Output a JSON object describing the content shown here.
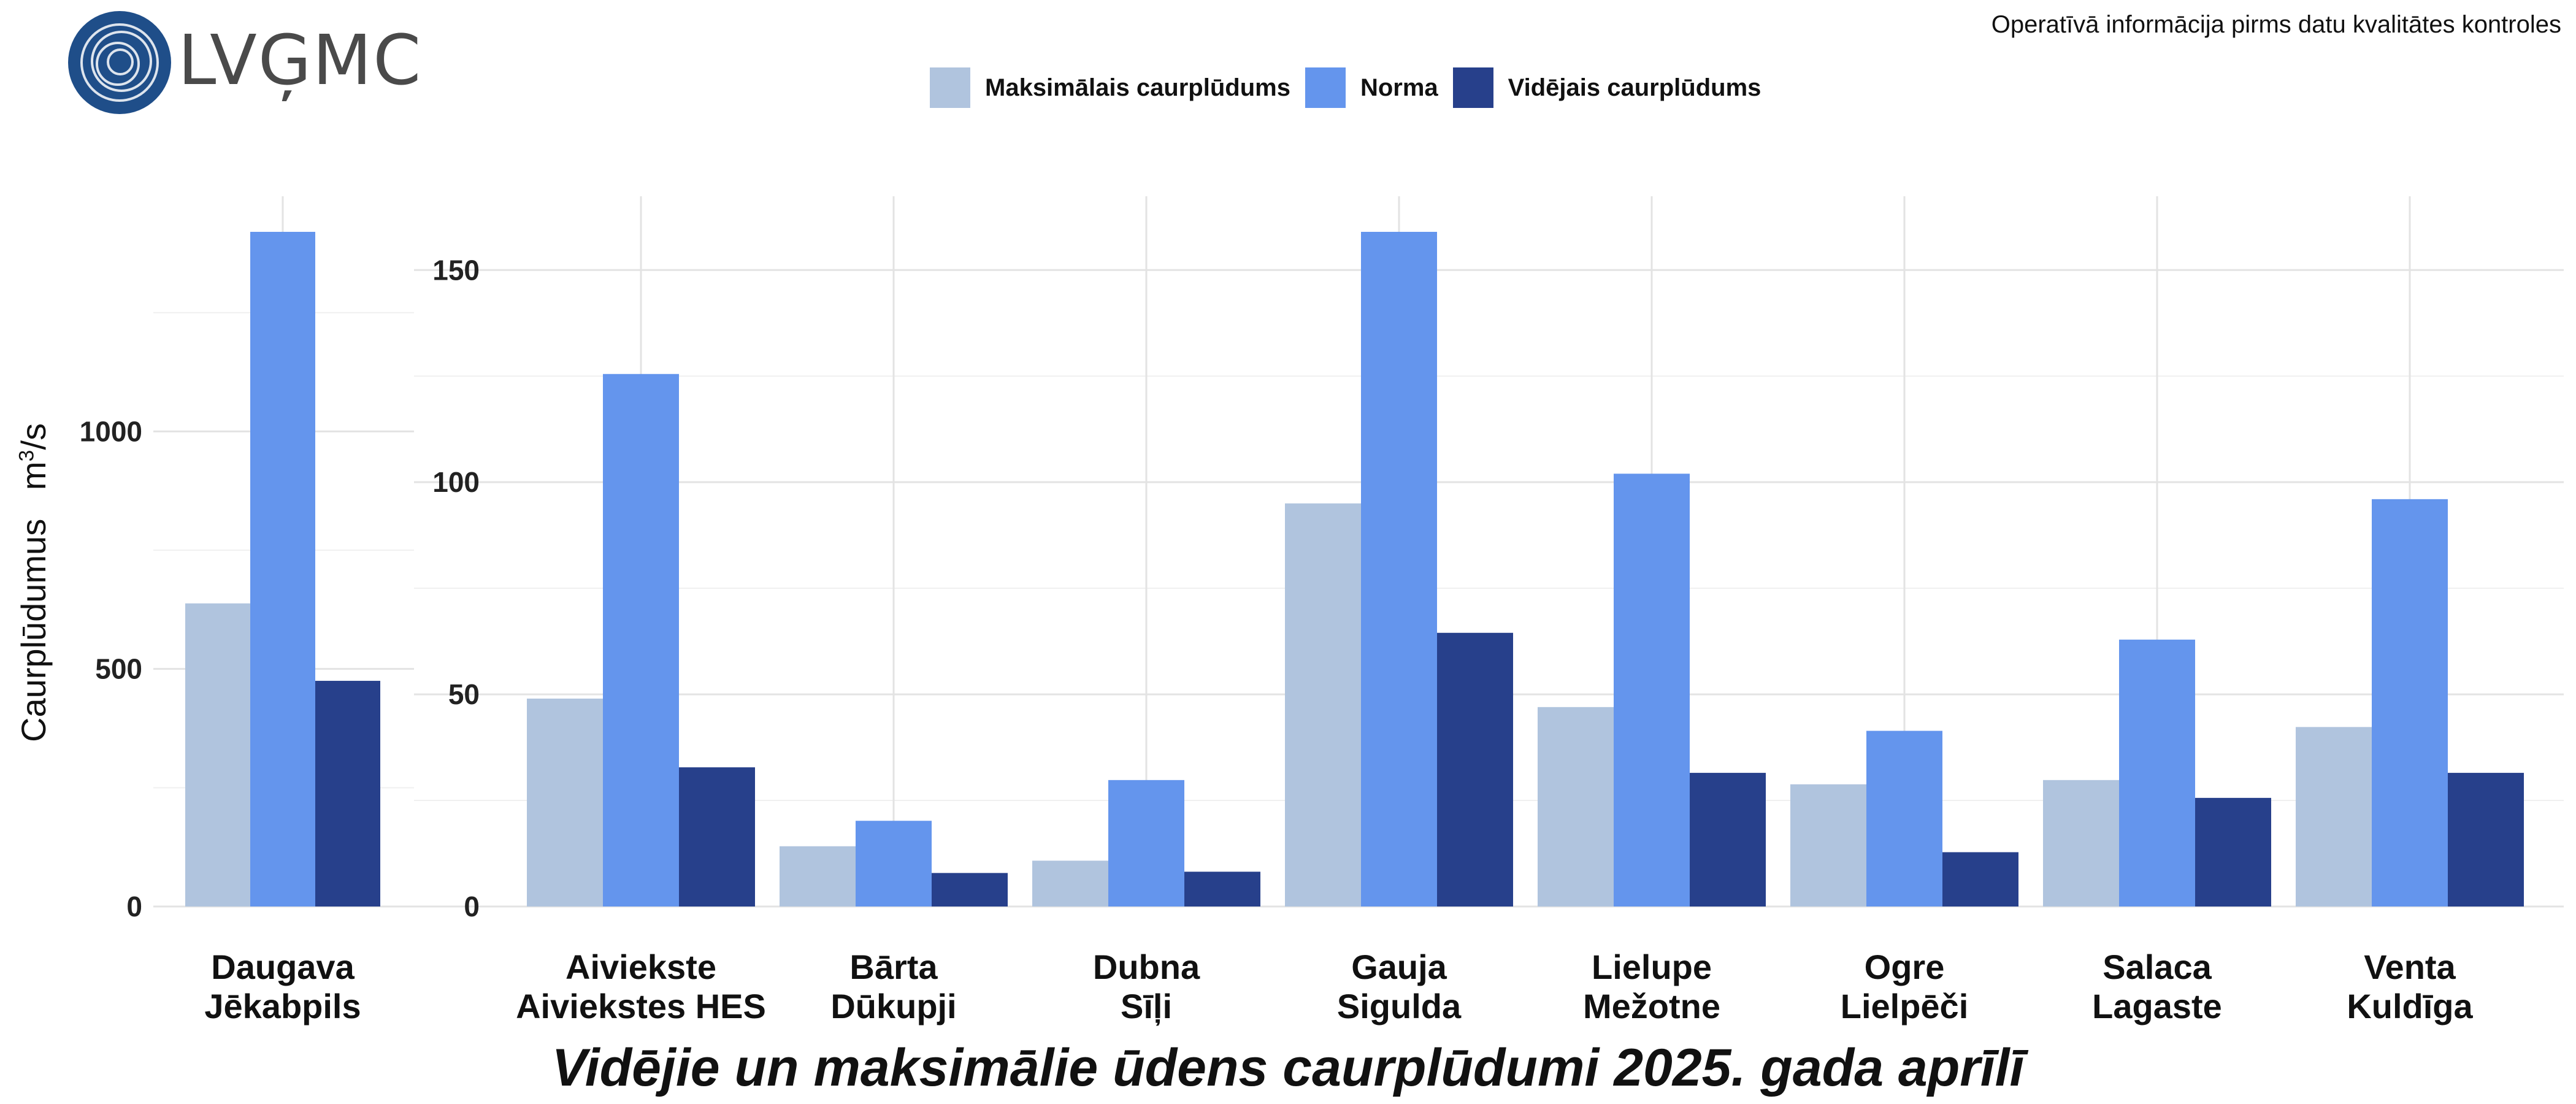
{
  "header": {
    "notice": "Operatīvā informācija pirms datu kvalitātes kontroles",
    "logo_text": "LVĢMC"
  },
  "colors": {
    "max": "#b0c4de",
    "norm": "#6495ed",
    "avg": "#27408b"
  },
  "chart_data": {
    "type": "bar",
    "title": "Vidējie un maksimālie ūdens caurplūdumi 2025. gada aprīlī",
    "ylabel": "Caurplūdumus",
    "yunit": "m3/s",
    "legend": {
      "position": "top",
      "items": [
        "Maksimālais caurplūdums",
        "Norma",
        "Vidējais caurplūdums"
      ]
    },
    "grid": true,
    "panels": [
      {
        "ylim": [
          0,
          1420
        ],
        "yticks": [
          "0",
          "500",
          "1000"
        ],
        "categories": [
          {
            "river": "Daugava",
            "station": "Jēkabpils"
          }
        ],
        "series": [
          {
            "name": "Maksimālais caurplūdums",
            "values": [
              638
            ]
          },
          {
            "name": "Norma",
            "values": [
              1420
            ]
          },
          {
            "name": "Vidējais caurplūdums",
            "values": [
              475
            ]
          }
        ]
      },
      {
        "ylim": [
          0,
          159
        ],
        "yticks": [
          "0",
          "50",
          "100",
          "150"
        ],
        "categories": [
          {
            "river": "Aiviekste",
            "station": "Aiviekstes HES"
          },
          {
            "river": "Bārta",
            "station": "Dūkupji"
          },
          {
            "river": "Dubna",
            "station": "Sīļi"
          },
          {
            "river": "Gauja",
            "station": "Sigulda"
          },
          {
            "river": "Lielupe",
            "station": "Mežotne"
          },
          {
            "river": "Ogre",
            "station": "Lielpēči"
          },
          {
            "river": "Salaca",
            "station": "Lagaste"
          },
          {
            "river": "Venta",
            "station": "Kuldīga"
          }
        ],
        "series": [
          {
            "name": "Maksimālais caurplūdums",
            "values": [
              49,
              14.2,
              10.8,
              95,
              47,
              28.8,
              29.8,
              42.3
            ]
          },
          {
            "name": "Norma",
            "values": [
              125.5,
              20.2,
              29.8,
              159,
              102,
              41.4,
              62.9,
              96
            ]
          },
          {
            "name": "Vidējais caurplūdums",
            "values": [
              32.8,
              7.9,
              8.2,
              64.5,
              31.5,
              12.8,
              25.6,
              31.5
            ]
          }
        ]
      }
    ]
  }
}
